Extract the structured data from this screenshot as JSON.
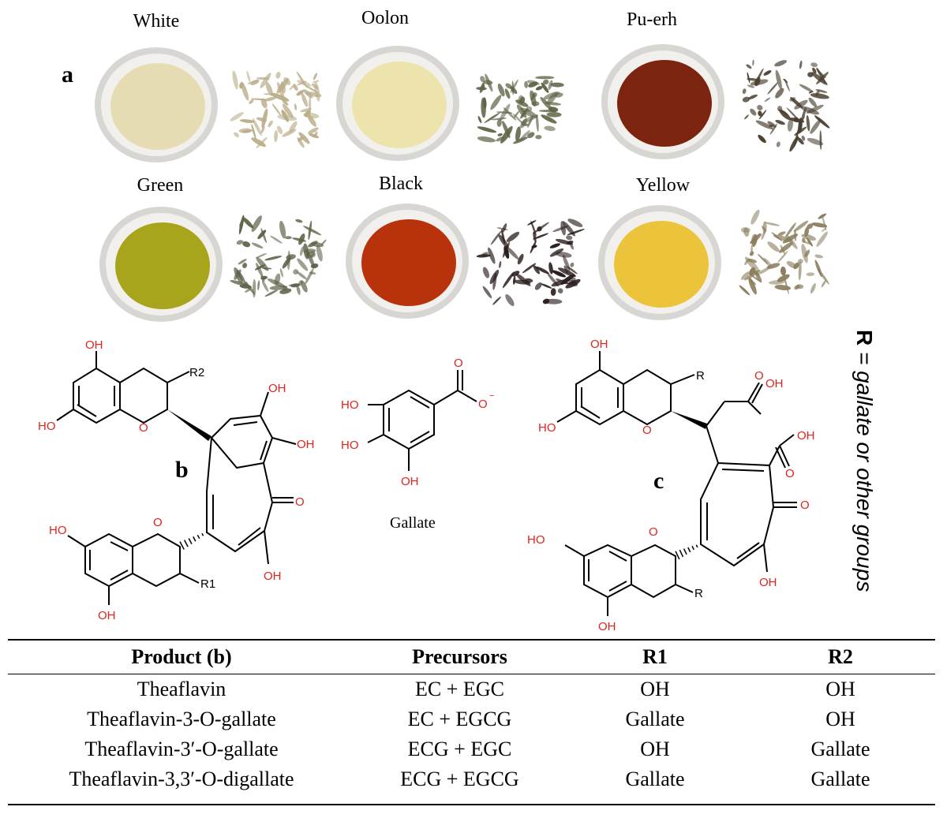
{
  "panel_a": {
    "letter": "a",
    "teas": [
      {
        "name": "White",
        "liquor_color": "#e6dcb4"
      },
      {
        "name": "Oolon",
        "liquor_color": "#ece4ac"
      },
      {
        "name": "Pu-erh",
        "liquor_color": "#7c2410"
      },
      {
        "name": "Green",
        "liquor_color": "#a8a41c"
      },
      {
        "name": "Black",
        "liquor_color": "#b8320c"
      },
      {
        "name": "Yellow",
        "liquor_color": "#ecc43c"
      }
    ]
  },
  "panel_b": {
    "letter": "b",
    "r1": "R1",
    "r2": "R2"
  },
  "gallate": {
    "name": "Gallate",
    "oh": "HO",
    "oh2": "OH",
    "o": "O",
    "o_minus": "O"
  },
  "panel_c": {
    "letter": "c",
    "r": "R"
  },
  "atoms": {
    "oh": "OH",
    "ho": "HO",
    "o": "O"
  },
  "r_note": {
    "r": "R",
    "text": " = gallate or other groups"
  },
  "table": {
    "headers": [
      "Product (b)",
      "Precursors",
      "R1",
      "R2"
    ],
    "rows": [
      [
        "Theaflavin",
        "EC + EGC",
        "OH",
        "OH"
      ],
      [
        "Theaflavin-3-O-gallate",
        "EC + EGCG",
        "Gallate",
        "OH"
      ],
      [
        "Theaflavin-3′-O-gallate",
        "ECG + EGC",
        "OH",
        "Gallate"
      ],
      [
        "Theaflavin-3,3′-O-digallate",
        "ECG + EGCG",
        "Gallate",
        "Gallate"
      ]
    ]
  },
  "colors": {
    "heteroatom": "#e0231d",
    "bond": "#000000"
  }
}
